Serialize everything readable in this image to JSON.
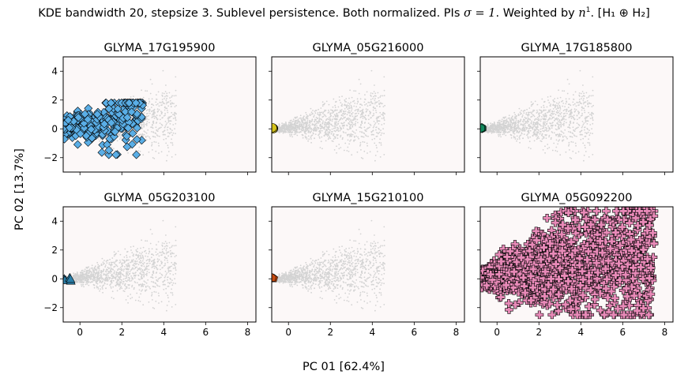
{
  "figure": {
    "title_main": "KDE bandwidth 20, stepsize 3. Sublevel persistence. Both normalized. PIs",
    "title_sigma": "σ = 1",
    "title_weighted": ". Weighted by",
    "title_n": "n",
    "title_exp": "1",
    "title_h": ". [H₁ ⊕ H₂]",
    "xlabel": "PC 01 [62.4%]",
    "ylabel": "PC 02 [13.7%]"
  },
  "colors": {
    "panel_bg": "#fcf8f8",
    "background_points": "#d3d3d3",
    "edge": "#000000"
  },
  "chart_data": [
    {
      "type": "scatter",
      "title": "GLYMA_17G195900",
      "marker": "diamond",
      "color": "#5aaee6",
      "xlim": [
        -0.8,
        8.4
      ],
      "ylim": [
        -3,
        5
      ],
      "xticks": [
        0,
        2,
        4,
        6,
        8
      ],
      "yticks": [
        -2,
        0,
        2,
        4
      ],
      "highlight": {
        "x_range": [
          -0.8,
          3.0
        ],
        "y_range": [
          -1.8,
          1.8
        ],
        "count": 300
      }
    },
    {
      "type": "scatter",
      "title": "GLYMA_05G216000",
      "marker": "circle",
      "color": "#d4c21a",
      "xlim": [
        -0.8,
        8.4
      ],
      "ylim": [
        -3,
        5
      ],
      "xticks": [
        0,
        2,
        4,
        6,
        8
      ],
      "yticks": [
        -2,
        0,
        2,
        4
      ],
      "highlight": {
        "x_range": [
          -0.8,
          -0.7
        ],
        "y_range": [
          0.0,
          0.1
        ],
        "count": 3
      }
    },
    {
      "type": "scatter",
      "title": "GLYMA_17G185800",
      "marker": "hexagon",
      "color": "#138a5e",
      "xlim": [
        -0.8,
        8.4
      ],
      "ylim": [
        -3,
        5
      ],
      "xticks": [
        0,
        2,
        4,
        6,
        8
      ],
      "yticks": [
        -2,
        0,
        2,
        4
      ],
      "highlight": {
        "x_range": [
          -0.8,
          -0.7
        ],
        "y_range": [
          0.0,
          0.1
        ],
        "count": 3
      }
    },
    {
      "type": "scatter",
      "title": "GLYMA_05G203100",
      "marker": "triangle",
      "color": "#2a7ea8",
      "xlim": [
        -0.8,
        8.4
      ],
      "ylim": [
        -3,
        5
      ],
      "xticks": [
        0,
        2,
        4,
        6,
        8
      ],
      "yticks": [
        -2,
        0,
        2,
        4
      ],
      "highlight": {
        "x_range": [
          -0.8,
          -0.35
        ],
        "y_range": [
          -0.2,
          0.1
        ],
        "count": 6
      }
    },
    {
      "type": "scatter",
      "title": "GLYMA_15G210100",
      "marker": "pentagon",
      "color": "#c64a10",
      "xlim": [
        -0.8,
        8.4
      ],
      "ylim": [
        -3,
        5
      ],
      "xticks": [
        0,
        2,
        4,
        6,
        8
      ],
      "yticks": [
        -2,
        0,
        2,
        4
      ],
      "highlight": {
        "x_range": [
          -0.8,
          -0.7
        ],
        "y_range": [
          0.0,
          0.1
        ],
        "count": 3
      }
    },
    {
      "type": "scatter",
      "title": "GLYMA_05G092200",
      "marker": "plus",
      "color": "#e88ab8",
      "xlim": [
        -0.8,
        8.4
      ],
      "ylim": [
        -3,
        5
      ],
      "xticks": [
        0,
        2,
        4,
        6,
        8
      ],
      "yticks": [
        -2,
        0,
        2,
        4
      ],
      "highlight": {
        "x_range": [
          -0.8,
          7.5
        ],
        "y_range": [
          -2.5,
          4.7
        ],
        "count": 1400
      }
    }
  ]
}
